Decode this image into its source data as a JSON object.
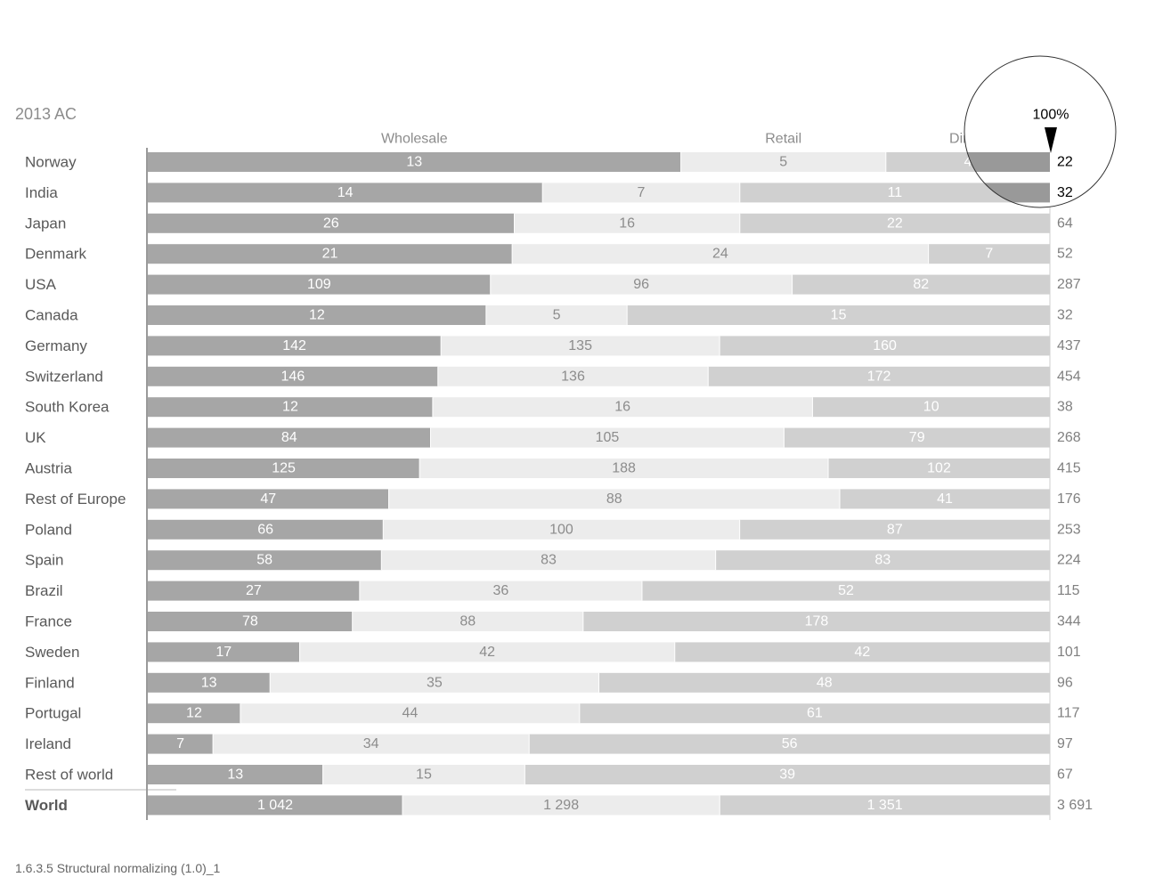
{
  "period_label": "2013 AC",
  "footer_label": "1.6.3.5 Structural normalizing (1.0)_1",
  "magnifier_label": "100%",
  "colors": {
    "wholesale": "#a6a6a6",
    "retail": "#ececec",
    "direct": "#d0d0d0",
    "label_text": "#595959",
    "value_on_dark": "#ffffff",
    "value_on_light": "#8c8c8c",
    "total_text": "#808080",
    "axis": "#9a9a9a"
  },
  "chart_data": {
    "type": "bar",
    "stacked": true,
    "normalized": "100%",
    "orientation": "horizontal",
    "series": [
      {
        "name": "Wholesale",
        "values": [
          13,
          14,
          26,
          21,
          109,
          12,
          142,
          146,
          12,
          84,
          125,
          47,
          66,
          58,
          27,
          78,
          17,
          13,
          12,
          7,
          13,
          1042
        ]
      },
      {
        "name": "Retail",
        "values": [
          5,
          7,
          16,
          24,
          96,
          5,
          135,
          136,
          16,
          105,
          188,
          88,
          100,
          83,
          36,
          88,
          42,
          35,
          44,
          34,
          15,
          1298
        ]
      },
      {
        "name": "Direct",
        "values": [
          4,
          11,
          22,
          7,
          82,
          15,
          160,
          172,
          10,
          79,
          102,
          41,
          87,
          83,
          52,
          178,
          42,
          48,
          61,
          56,
          39,
          1351
        ]
      }
    ],
    "categories": [
      "Norway",
      "India",
      "Japan",
      "Denmark",
      "USA",
      "Canada",
      "Germany",
      "Switzerland",
      "South Korea",
      "UK",
      "Austria",
      "Rest of Europe",
      "Poland",
      "Spain",
      "Brazil",
      "France",
      "Sweden",
      "Finland",
      "Portugal",
      "Ireland",
      "Rest of world",
      "World"
    ],
    "value_labels": [
      [
        "13",
        "5",
        "4",
        "22"
      ],
      [
        "14",
        "7",
        "11",
        "32"
      ],
      [
        "26",
        "16",
        "22",
        "64"
      ],
      [
        "21",
        "24",
        "7",
        "52"
      ],
      [
        "109",
        "96",
        "82",
        "287"
      ],
      [
        "12",
        "5",
        "15",
        "32"
      ],
      [
        "142",
        "135",
        "160",
        "437"
      ],
      [
        "146",
        "136",
        "172",
        "454"
      ],
      [
        "12",
        "16",
        "10",
        "38"
      ],
      [
        "84",
        "105",
        "79",
        "268"
      ],
      [
        "125",
        "188",
        "102",
        "415"
      ],
      [
        "47",
        "88",
        "41",
        "176"
      ],
      [
        "66",
        "100",
        "87",
        "253"
      ],
      [
        "58",
        "83",
        "83",
        "224"
      ],
      [
        "27",
        "36",
        "52",
        "115"
      ],
      [
        "78",
        "88",
        "178",
        "344"
      ],
      [
        "17",
        "42",
        "42",
        "101"
      ],
      [
        "13",
        "35",
        "48",
        "96"
      ],
      [
        "12",
        "44",
        "61",
        "117"
      ],
      [
        "7",
        "34",
        "56",
        "97"
      ],
      [
        "13",
        "15",
        "39",
        "67"
      ],
      [
        "1 042",
        "1 298",
        "1 351",
        "3 691"
      ]
    ],
    "totals": [
      22,
      32,
      64,
      52,
      287,
      32,
      437,
      454,
      38,
      268,
      415,
      176,
      253,
      224,
      115,
      344,
      101,
      96,
      117,
      97,
      67,
      3691
    ],
    "highlighted_rows": [
      0,
      1
    ],
    "bold_rows": [
      21
    ]
  }
}
